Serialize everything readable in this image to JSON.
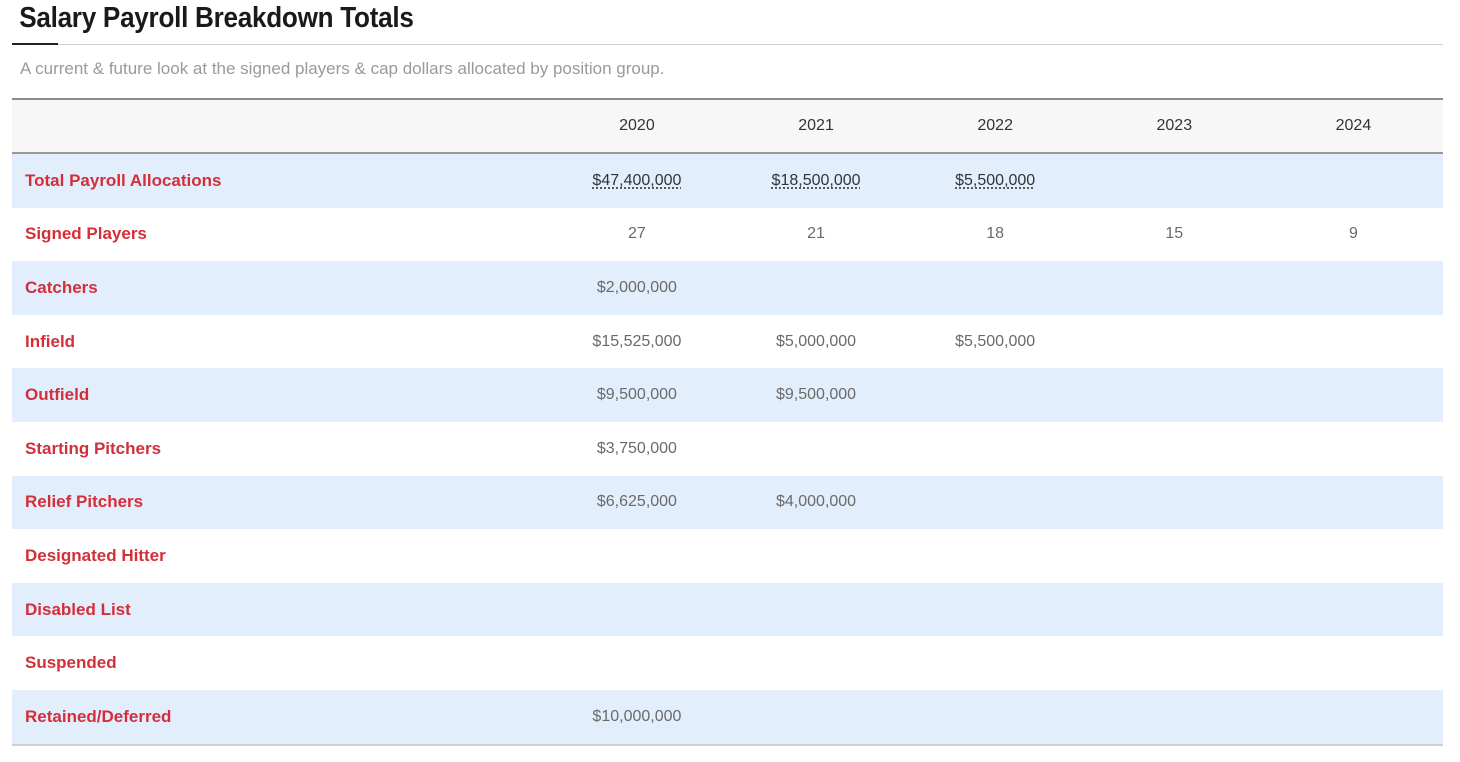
{
  "page": {
    "title": "Salary Payroll Breakdown Totals",
    "subtitle": "A current & future look at the signed players & cap dollars allocated by position group."
  },
  "colors": {
    "row_label": "#d32f3a",
    "stripe": "#e2eefc",
    "header_bg": "#f7f7f7"
  },
  "table": {
    "columns": [
      "",
      "2020",
      "2021",
      "2022",
      "2023",
      "2024"
    ],
    "rows": [
      {
        "label": "Total Payroll Allocations",
        "values": [
          "$47,400,000",
          "$18,500,000",
          "$5,500,000",
          "",
          ""
        ]
      },
      {
        "label": "Signed Players",
        "values": [
          "27",
          "21",
          "18",
          "15",
          "9"
        ]
      },
      {
        "label": "Catchers",
        "values": [
          "$2,000,000",
          "",
          "",
          "",
          ""
        ]
      },
      {
        "label": "Infield",
        "values": [
          "$15,525,000",
          "$5,000,000",
          "$5,500,000",
          "",
          ""
        ]
      },
      {
        "label": "Outfield",
        "values": [
          "$9,500,000",
          "$9,500,000",
          "",
          "",
          ""
        ]
      },
      {
        "label": "Starting Pitchers",
        "values": [
          "$3,750,000",
          "",
          "",
          "",
          ""
        ]
      },
      {
        "label": "Relief Pitchers",
        "values": [
          "$6,625,000",
          "$4,000,000",
          "",
          "",
          ""
        ]
      },
      {
        "label": "Designated Hitter",
        "values": [
          "",
          "",
          "",
          "",
          ""
        ]
      },
      {
        "label": "Disabled List",
        "values": [
          "",
          "",
          "",
          "",
          ""
        ]
      },
      {
        "label": "Suspended",
        "values": [
          "",
          "",
          "",
          "",
          ""
        ]
      },
      {
        "label": "Retained/Deferred",
        "values": [
          "$10,000,000",
          "",
          "",
          "",
          ""
        ]
      }
    ]
  }
}
